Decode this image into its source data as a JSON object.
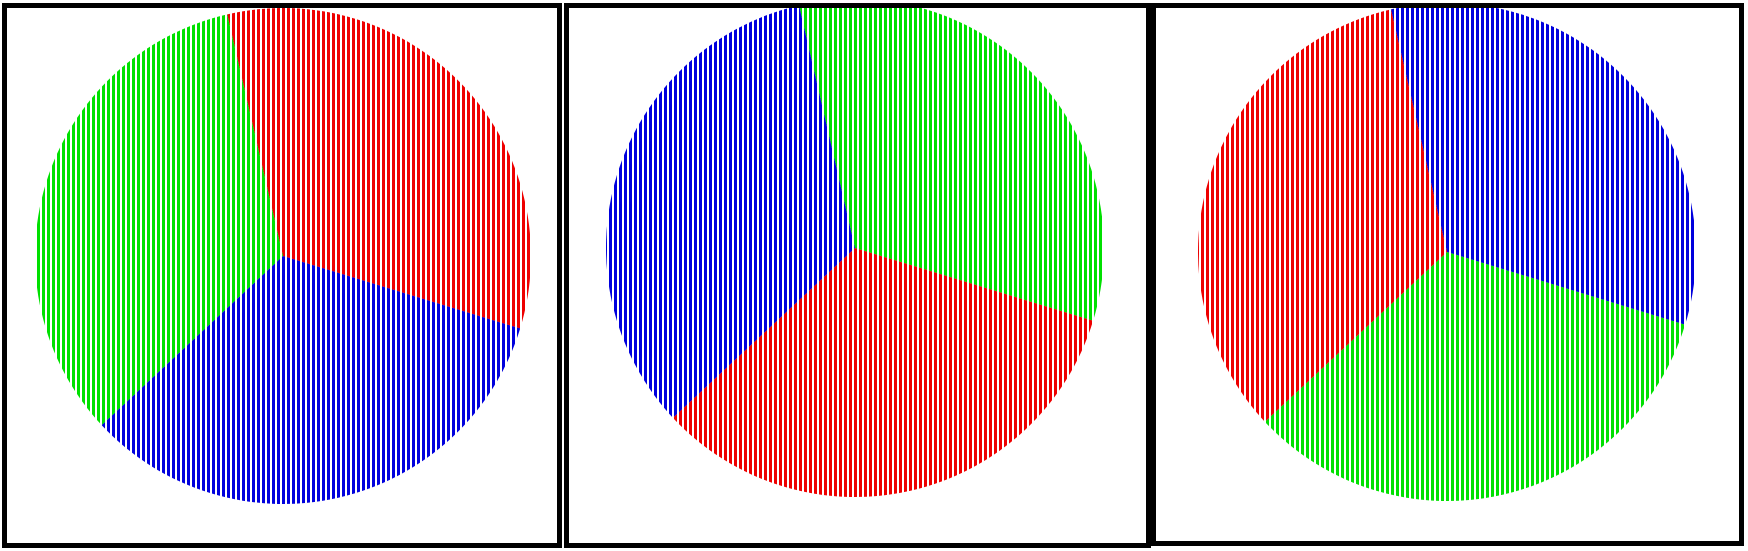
{
  "colors": {
    "red": "#ee0000",
    "green": "#00e000",
    "blue": "#0000dd",
    "stripe": "#ffffff",
    "frame": "#000000"
  },
  "chart_data": [
    {
      "type": "pie",
      "title": "",
      "start_angle_deg": -103,
      "slices": [
        {
          "color": "red",
          "value": 33.3
        },
        {
          "color": "blue",
          "value": 33.3
        },
        {
          "color": "green",
          "value": 33.3
        }
      ]
    },
    {
      "type": "pie",
      "title": "",
      "start_angle_deg": -103,
      "slices": [
        {
          "color": "green",
          "value": 33.3
        },
        {
          "color": "red",
          "value": 33.3
        },
        {
          "color": "blue",
          "value": 33.3
        }
      ]
    },
    {
      "type": "pie",
      "title": "",
      "start_angle_deg": -103,
      "slices": [
        {
          "color": "blue",
          "value": 33.3
        },
        {
          "color": "green",
          "value": 33.3
        },
        {
          "color": "red",
          "value": 33.3
        }
      ]
    }
  ]
}
